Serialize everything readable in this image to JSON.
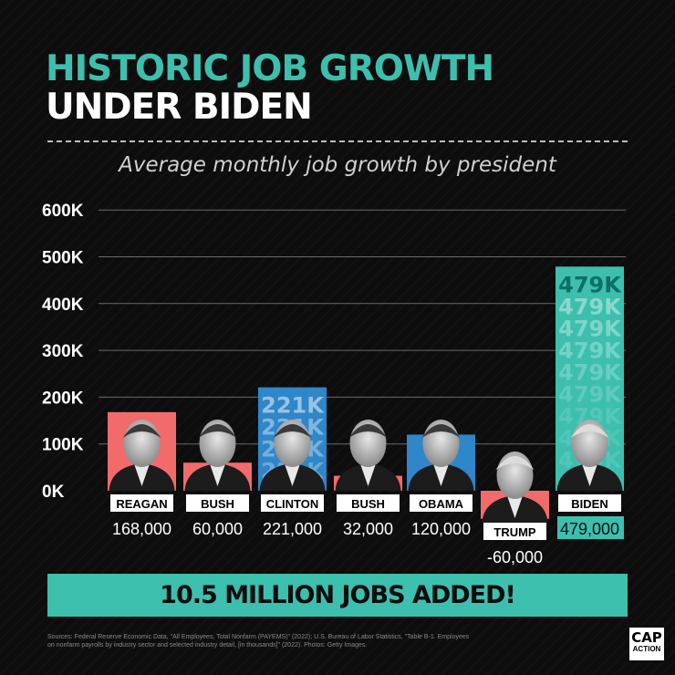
{
  "title_line1": "HISTORIC JOB GROWTH",
  "title_line2": "UNDER BIDEN",
  "subtitle": "Average monthly job growth by president",
  "banner": "10.5 MILLION JOBS ADDED!",
  "sources": "Sources: Federal Reserve Economic Data, \"All Employees, Total Nonfarm (PAYEMS)\" (2022); U.S. Bureau of Labor Statistics, \"Table B-1. Employees on nonfarm payrolls by industry sector and selected industry detail, [in thousands]\" (2022). Photos: Getty Images.",
  "logo": {
    "line1": "CAP",
    "line2": "ACTION"
  },
  "colors": {
    "teal": "#3dbfae",
    "red": "#f26b6b",
    "blue": "#2f86c8",
    "background": "#0d0d0d"
  },
  "chart_data": {
    "type": "bar",
    "title": "Average monthly job growth by president",
    "categories": [
      "REAGAN",
      "BUSH",
      "CLINTON",
      "BUSH",
      "OBAMA",
      "TRUMP",
      "BIDEN"
    ],
    "values": [
      168000,
      60000,
      221000,
      32000,
      120000,
      -60000,
      479000
    ],
    "value_labels": [
      "168,000",
      "60,000",
      "221,000",
      "32,000",
      "120,000",
      "-60,000",
      "479,000"
    ],
    "bar_colors": [
      "#f26b6b",
      "#f26b6b",
      "#2f86c8",
      "#f26b6b",
      "#2f86c8",
      "#f26b6b",
      "#3dbfae"
    ],
    "bar_text": [
      "",
      "",
      "221K",
      "",
      "",
      "",
      "479K"
    ],
    "yticks": [
      0,
      100000,
      200000,
      300000,
      400000,
      500000,
      600000
    ],
    "ytick_labels": [
      "0K",
      "100K",
      "200K",
      "300K",
      "400K",
      "500K",
      "600K"
    ],
    "ylim": [
      -60000,
      600000
    ],
    "grid": true
  }
}
